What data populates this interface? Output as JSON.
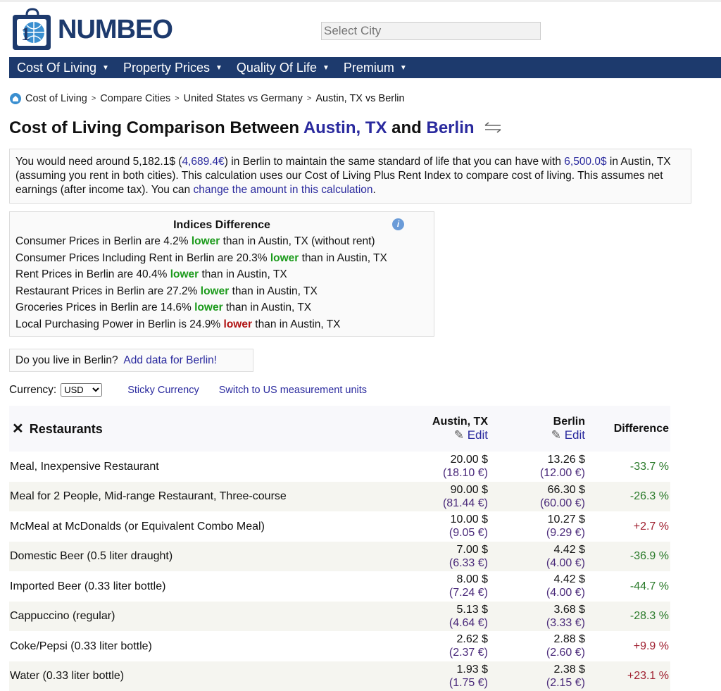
{
  "header": {
    "logo_text": "NUMBEO",
    "city_placeholder": "Select City"
  },
  "nav": [
    {
      "label": "Cost Of Living"
    },
    {
      "label": "Property Prices"
    },
    {
      "label": "Quality Of Life"
    },
    {
      "label": "Premium"
    }
  ],
  "breadcrumb": [
    "Cost of Living",
    "Compare Cities",
    "United States vs Germany",
    "Austin, TX vs Berlin"
  ],
  "title": {
    "prefix": "Cost of Living Comparison Between ",
    "city1": "Austin, TX",
    "and": " and ",
    "city2": "Berlin"
  },
  "summary": {
    "t1": "You would need around 5,182.1$ (",
    "eur": "4,689.4€",
    "t2": ") in Berlin to maintain the same standard of life that you can have with ",
    "amount": "6,500.0$",
    "t3": " in Austin, TX (assuming you rent in both cities). This calculation uses our Cost of Living Plus Rent Index to compare cost of living. This assumes net earnings (after income tax). You can ",
    "link": "change the amount in this calculation",
    "t4": "."
  },
  "indices": {
    "title": "Indices Difference",
    "rows": [
      {
        "pre": "Consumer Prices in Berlin are 4.2% ",
        "word": "lower",
        "post": " than in Austin, TX (without rent)",
        "color": "green"
      },
      {
        "pre": "Consumer Prices Including Rent in Berlin are 20.3% ",
        "word": "lower",
        "post": " than in Austin, TX",
        "color": "green"
      },
      {
        "pre": "Rent Prices in Berlin are 40.4% ",
        "word": "lower",
        "post": " than in Austin, TX",
        "color": "green"
      },
      {
        "pre": "Restaurant Prices in Berlin are 27.2% ",
        "word": "lower",
        "post": " than in Austin, TX",
        "color": "green"
      },
      {
        "pre": "Groceries Prices in Berlin are 14.6% ",
        "word": "lower",
        "post": " than in Austin, TX",
        "color": "green"
      },
      {
        "pre": "Local Purchasing Power in Berlin is 24.9% ",
        "word": "lower",
        "post": " than in Austin, TX",
        "color": "red"
      }
    ]
  },
  "live": {
    "question": "Do you live in Berlin?",
    "link": "Add data for Berlin!"
  },
  "currency": {
    "label": "Currency:",
    "value": "USD",
    "sticky": "Sticky Currency",
    "switch": "Switch to US measurement units"
  },
  "table": {
    "section": "Restaurants",
    "col1": "Austin, TX",
    "col2": "Berlin",
    "diff": "Difference",
    "edit": "Edit",
    "rows": [
      {
        "item": "Meal, Inexpensive Restaurant",
        "a_usd": "20.00 $",
        "a_eur": "(18.10 €)",
        "b_usd": "13.26 $",
        "b_eur": "(12.00 €)",
        "diff": "-33.7 %"
      },
      {
        "item": "Meal for 2 People, Mid-range Restaurant, Three-course",
        "a_usd": "90.00 $",
        "a_eur": "(81.44 €)",
        "b_usd": "66.30 $",
        "b_eur": "(60.00 €)",
        "diff": "-26.3 %"
      },
      {
        "item": "McMeal at McDonalds (or Equivalent Combo Meal)",
        "a_usd": "10.00 $",
        "a_eur": "(9.05 €)",
        "b_usd": "10.27 $",
        "b_eur": "(9.29 €)",
        "diff": "+2.7 %"
      },
      {
        "item": "Domestic Beer (0.5 liter draught)",
        "a_usd": "7.00 $",
        "a_eur": "(6.33 €)",
        "b_usd": "4.42 $",
        "b_eur": "(4.00 €)",
        "diff": "-36.9 %"
      },
      {
        "item": "Imported Beer (0.33 liter bottle)",
        "a_usd": "8.00 $",
        "a_eur": "(7.24 €)",
        "b_usd": "4.42 $",
        "b_eur": "(4.00 €)",
        "diff": "-44.7 %"
      },
      {
        "item": "Cappuccino (regular)",
        "a_usd": "5.13 $",
        "a_eur": "(4.64 €)",
        "b_usd": "3.68 $",
        "b_eur": "(3.33 €)",
        "diff": "-28.3 %"
      },
      {
        "item": "Coke/Pepsi (0.33 liter bottle)",
        "a_usd": "2.62 $",
        "a_eur": "(2.37 €)",
        "b_usd": "2.88 $",
        "b_eur": "(2.60 €)",
        "diff": "+9.9 %"
      },
      {
        "item": "Water (0.33 liter bottle)",
        "a_usd": "1.93 $",
        "a_eur": "(1.75 €)",
        "b_usd": "2.38 $",
        "b_eur": "(2.15 €)",
        "diff": "+23.1 %"
      }
    ]
  },
  "colors": {
    "nav": "#1d3a6d",
    "link": "#2a2a9e",
    "lower_green": "#1a9a1a",
    "lower_red": "#b01010"
  }
}
